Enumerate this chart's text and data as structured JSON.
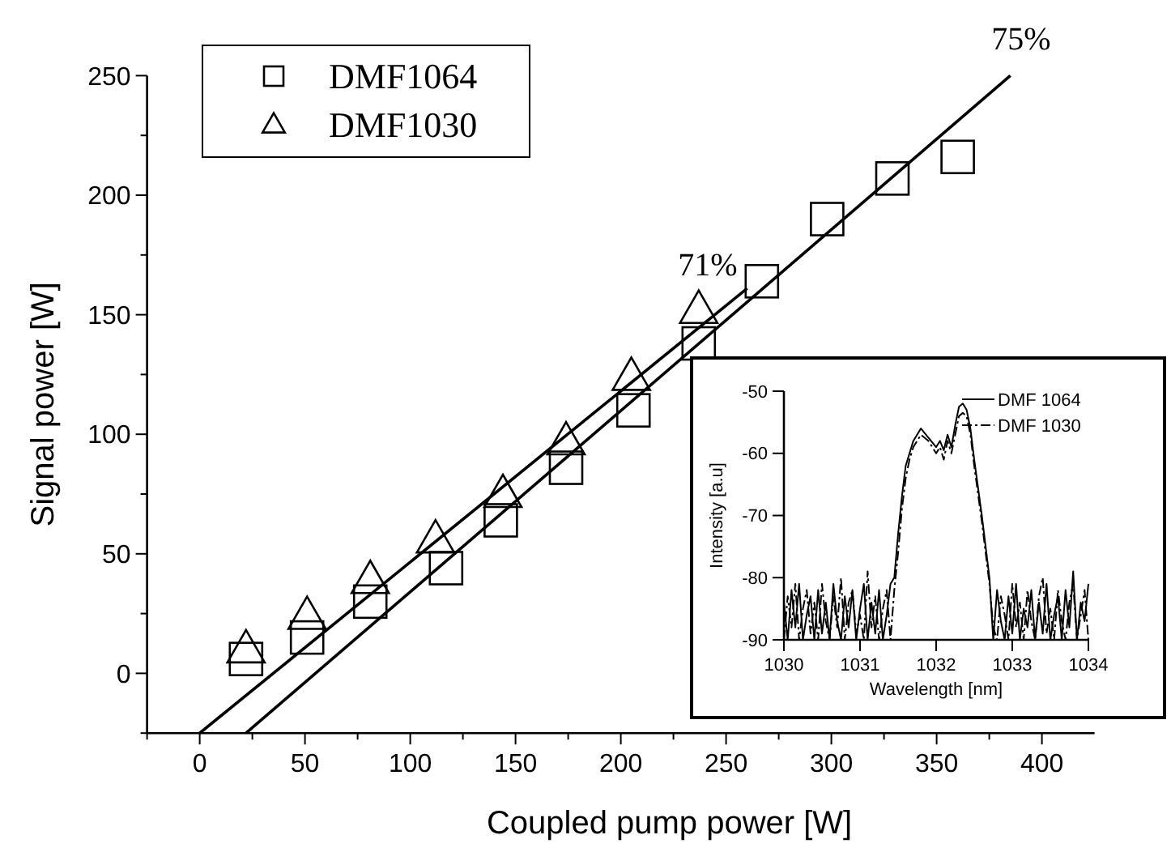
{
  "chart_data": [
    {
      "type": "scatter",
      "xlabel": "Coupled pump power [W]",
      "ylabel": "Signal power [W]",
      "xlim": [
        -25,
        425
      ],
      "ylim": [
        -25,
        250
      ],
      "xticks": [
        {
          "value": -25,
          "label": null
        },
        0,
        {
          "value": 25,
          "label": null
        },
        50,
        {
          "value": 75,
          "label": null
        },
        100,
        {
          "value": 125,
          "label": null
        },
        150,
        {
          "value": 175,
          "label": null
        },
        200,
        {
          "value": 225,
          "label": null
        },
        250,
        {
          "value": 275,
          "label": null
        },
        300,
        {
          "value": 325,
          "label": null
        },
        350,
        {
          "value": 375,
          "label": null
        },
        400
      ],
      "yticks": [
        {
          "value": -25,
          "label": null
        },
        0,
        {
          "value": 25,
          "label": null
        },
        50,
        {
          "value": 75,
          "label": null
        },
        100,
        {
          "value": 125,
          "label": null
        },
        150,
        {
          "value": 175,
          "label": null
        },
        200,
        {
          "value": 225,
          "label": null
        },
        250
      ],
      "grid": false,
      "legend": "top left",
      "series": [
        {
          "name": "DMF1064",
          "marker": "square",
          "color": "#000000",
          "x": [
            22,
            51,
            81,
            117,
            143,
            174,
            206,
            237,
            267,
            298,
            329,
            360
          ],
          "values": [
            6,
            15,
            30,
            44,
            64,
            86,
            110,
            138,
            164,
            190,
            207,
            216
          ]
        },
        {
          "name": "DMF1030",
          "marker": "triangle",
          "color": "#000000",
          "x": [
            22,
            51,
            81,
            112,
            144,
            174,
            205,
            237
          ],
          "values": [
            10,
            24,
            39,
            56,
            75,
            97,
            124,
            152
          ]
        },
        {
          "name": "71%",
          "type": "line",
          "marker": "none",
          "line_style": "solid",
          "color": "#000000",
          "x": [
            0,
            260
          ],
          "values": [
            -25,
            161
          ]
        },
        {
          "name": "75%",
          "type": "line",
          "marker": "none",
          "line_style": "solid",
          "color": "#000000",
          "x": [
            22,
            385
          ],
          "values": [
            -25,
            250
          ]
        }
      ]
    },
    {
      "type": "line",
      "xlabel": "Wavelength [nm]",
      "ylabel": "Intensity [a.u]",
      "xlim": [
        1030,
        1034
      ],
      "ylim": [
        -90,
        -50
      ],
      "xticks": [
        1030,
        1031,
        1032,
        1033,
        1034
      ],
      "yticks": [
        -90,
        -80,
        -70,
        -60,
        -50
      ],
      "grid": false,
      "legend": "top right",
      "x": [
        1030,
        1030.05,
        1030.1,
        1030.15,
        1030.2,
        1030.25,
        1030.3,
        1030.35,
        1030.4,
        1030.45,
        1030.5,
        1030.55,
        1030.6,
        1030.65,
        1030.7,
        1030.75,
        1030.8,
        1030.85,
        1030.9,
        1030.95,
        1031,
        1031.05,
        1031.1,
        1031.15,
        1031.2,
        1031.25,
        1031.3,
        1031.35,
        1031.4,
        1031.45,
        1031.5,
        1031.55,
        1031.6,
        1031.65,
        1031.7,
        1031.8,
        1031.9,
        1032,
        1032.05,
        1032.1,
        1032.15,
        1032.2,
        1032.25,
        1032.3,
        1032.35,
        1032.4,
        1032.45,
        1032.5,
        1032.6,
        1032.7,
        1032.75,
        1032.8,
        1032.85,
        1032.9,
        1032.95,
        1033,
        1033.05,
        1033.1,
        1033.15,
        1033.2,
        1033.25,
        1033.3,
        1033.35,
        1033.4,
        1033.45,
        1033.5,
        1033.55,
        1033.6,
        1033.65,
        1033.7,
        1033.75,
        1033.8,
        1033.85,
        1033.9,
        1033.95,
        1034
      ],
      "series": [
        {
          "name": "DMF 1064",
          "line_style": "solid",
          "color": "#000000",
          "values": [
            -84,
            -90,
            -82,
            -88,
            -81,
            -90,
            -86,
            -83,
            -90,
            -82,
            -89,
            -84,
            -90,
            -81,
            -87,
            -90,
            -83,
            -88,
            -82,
            -90,
            -85,
            -81,
            -90,
            -84,
            -89,
            -82,
            -90,
            -86,
            -81,
            -80,
            -73,
            -67,
            -62,
            -60,
            -58,
            -56,
            -57.5,
            -59,
            -58,
            -59.5,
            -57,
            -59,
            -55.5,
            -52.5,
            -52,
            -53,
            -56,
            -61,
            -70,
            -80,
            -90,
            -82,
            -87,
            -90,
            -83,
            -89,
            -81,
            -90,
            -85,
            -88,
            -82,
            -90,
            -84,
            -89,
            -81,
            -90,
            -86,
            -83,
            -90,
            -82,
            -88,
            -79,
            -90,
            -84,
            -87,
            -81
          ]
        },
        {
          "name": "DMF 1030",
          "line_style": "dashed",
          "color": "#000000",
          "values": [
            -90,
            -83,
            -88,
            -81,
            -90,
            -85,
            -82,
            -89,
            -84,
            -90,
            -81,
            -87,
            -90,
            -83,
            -88,
            -80,
            -90,
            -84,
            -82,
            -89,
            -86,
            -90,
            -79,
            -88,
            -83,
            -90,
            -85,
            -82,
            -90,
            -82,
            -76,
            -69,
            -64,
            -61,
            -59,
            -57,
            -58,
            -60,
            -59,
            -61,
            -58,
            -60,
            -57,
            -54,
            -53.5,
            -54,
            -57,
            -62,
            -71,
            -81,
            -88,
            -90,
            -83,
            -86,
            -90,
            -81,
            -88,
            -84,
            -90,
            -82,
            -87,
            -90,
            -83,
            -80,
            -89,
            -85,
            -90,
            -82,
            -87,
            -90,
            -84,
            -81,
            -90,
            -86,
            -82,
            -90
          ]
        }
      ]
    }
  ]
}
